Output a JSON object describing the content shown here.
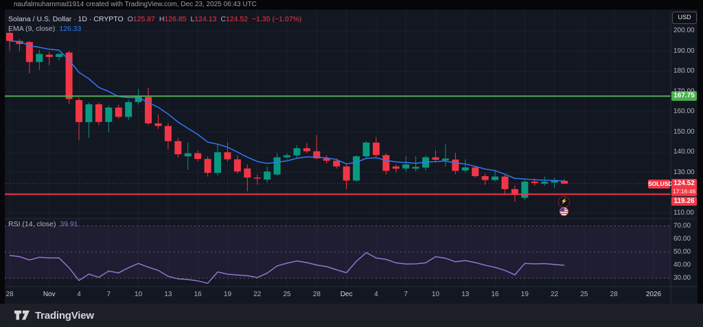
{
  "header": {
    "attribution": "naufalmuhammad1914 created with TradingView.com, Dec 23, 2025 06:43 UTC"
  },
  "legend": {
    "title": "Solana / U.S. Dollar · 1D · CRYPTO",
    "o_label": "O",
    "o_val": "125.87",
    "h_label": "H",
    "h_val": "126.85",
    "l_label": "L",
    "l_val": "124.13",
    "c_label": "C",
    "c_val": "124.52",
    "change": "−1.35 (−1.07%)",
    "ema_label": "EMA (9, close)",
    "ema_val": "126.33",
    "rsi_label": "RSI (14, close)",
    "rsi_val": "39.91"
  },
  "axis": {
    "currency_button": "USD",
    "price_ticks": [
      200,
      190,
      180,
      170,
      160,
      150,
      140,
      130,
      110
    ],
    "rsi_ticks": [
      70,
      60,
      50,
      40,
      30
    ],
    "time_ticks": [
      {
        "label": "28",
        "day": 0
      },
      {
        "label": "Nov",
        "day": 4,
        "major": true
      },
      {
        "label": "4",
        "day": 7
      },
      {
        "label": "7",
        "day": 10
      },
      {
        "label": "10",
        "day": 13
      },
      {
        "label": "13",
        "day": 16
      },
      {
        "label": "16",
        "day": 19
      },
      {
        "label": "19",
        "day": 22
      },
      {
        "label": "22",
        "day": 25
      },
      {
        "label": "25",
        "day": 28
      },
      {
        "label": "28",
        "day": 31
      },
      {
        "label": "Dec",
        "day": 34,
        "major": true
      },
      {
        "label": "4",
        "day": 37
      },
      {
        "label": "7",
        "day": 40
      },
      {
        "label": "10",
        "day": 43
      },
      {
        "label": "13",
        "day": 46
      },
      {
        "label": "16",
        "day": 49
      },
      {
        "label": "19",
        "day": 52
      },
      {
        "label": "22",
        "day": 55
      },
      {
        "label": "25",
        "day": 58
      },
      {
        "label": "28",
        "day": 61
      },
      {
        "label": "2026",
        "day": 65,
        "major": true
      }
    ]
  },
  "labels": {
    "green_level": "167.75",
    "symbol_tag": "SOLUSD",
    "last_price": "124.52",
    "countdown": "17:16:46",
    "red_level": "119.26"
  },
  "icons": {
    "flash": "⚡"
  },
  "footer": {
    "brand": "TradingView"
  },
  "colors": {
    "panel": "#131722",
    "grid": "rgba(182,186,196,0.06)",
    "up": "#089981",
    "down": "#f23645",
    "ema": "#3179f5",
    "rsi": "#9575cd",
    "rsi_band": "rgba(126,87,194,0.10)",
    "rsi_dash": "rgba(178,181,190,0.45)",
    "level_green": "#4caf50",
    "level_red": "#f23645",
    "border": "#2a2e39"
  },
  "chart_data": {
    "type": "candlestick",
    "symbol": "SOLUSD",
    "interval": "1D",
    "start_date": "2025-10-28",
    "last_ohlc": {
      "open": 125.87,
      "high": 126.85,
      "low": 124.13,
      "close": 124.52,
      "change": -1.35,
      "change_pct": -1.07
    },
    "levels": {
      "resistance": 167.75,
      "support": 119.26,
      "last_price": 124.52
    },
    "price_axis": {
      "min": 107,
      "max": 202,
      "tick_step": 10
    },
    "rsi_axis": {
      "bands": [
        70,
        50,
        30
      ],
      "min": 25,
      "max": 75
    },
    "ema_period": 9,
    "rsi_period": 14,
    "candles": [
      [
        199.0,
        200.5,
        190.4,
        195.0
      ],
      [
        195.0,
        196.0,
        190.0,
        193.5
      ],
      [
        194.5,
        195.0,
        179.0,
        184.6
      ],
      [
        184.6,
        190.6,
        180.7,
        188.6
      ],
      [
        188.2,
        189.5,
        183.0,
        187.1
      ],
      [
        187.1,
        189.0,
        185.5,
        188.6
      ],
      [
        189.3,
        190.2,
        163.9,
        166.3
      ],
      [
        165.8,
        167.0,
        145.9,
        154.9
      ],
      [
        154.9,
        164.5,
        147.0,
        163.7
      ],
      [
        163.7,
        164.5,
        153.5,
        155.0
      ],
      [
        155.0,
        163.0,
        149.8,
        162.1
      ],
      [
        162.1,
        163.5,
        156.5,
        157.5
      ],
      [
        157.5,
        166.0,
        156.0,
        164.8
      ],
      [
        164.8,
        171.3,
        163.5,
        167.6
      ],
      [
        167.3,
        171.9,
        153.5,
        154.3
      ],
      [
        154.3,
        158.8,
        151.5,
        153.0
      ],
      [
        153.0,
        154.5,
        141.4,
        145.5
      ],
      [
        145.5,
        147.0,
        137.5,
        139.0
      ],
      [
        138.0,
        144.8,
        131.3,
        139.5
      ],
      [
        139.5,
        141.0,
        135.5,
        136.7
      ],
      [
        136.7,
        138.0,
        128.0,
        129.8
      ],
      [
        129.8,
        144.0,
        128.5,
        140.0
      ],
      [
        140.0,
        144.8,
        135.5,
        136.5
      ],
      [
        136.5,
        138.5,
        129.5,
        130.5
      ],
      [
        132.0,
        134.0,
        120.7,
        127.5
      ],
      [
        127.5,
        129.0,
        124.0,
        127.0
      ],
      [
        126.5,
        133.0,
        125.0,
        130.5
      ],
      [
        129.0,
        139.5,
        128.5,
        137.5
      ],
      [
        137.5,
        139.5,
        136.5,
        138.5
      ],
      [
        138.5,
        143.5,
        137.0,
        142.0
      ],
      [
        142.0,
        144.5,
        139.5,
        140.5
      ],
      [
        140.5,
        148.5,
        136.5,
        137.0
      ],
      [
        137.0,
        138.5,
        134.5,
        135.8
      ],
      [
        135.8,
        137.0,
        132.0,
        133.0
      ],
      [
        133.0,
        134.0,
        121.8,
        126.0
      ],
      [
        126.0,
        138.5,
        125.5,
        138.0
      ],
      [
        138.0,
        145.5,
        137.0,
        144.8
      ],
      [
        144.8,
        147.6,
        137.5,
        138.6
      ],
      [
        138.6,
        139.5,
        129.1,
        130.8
      ],
      [
        133.0,
        134.0,
        130.0,
        131.9
      ],
      [
        132.0,
        138.0,
        130.5,
        134.0
      ],
      [
        131.9,
        138.0,
        130.5,
        132.8
      ],
      [
        132.4,
        138.5,
        131.0,
        137.5
      ],
      [
        137.5,
        141.0,
        135.5,
        136.3
      ],
      [
        136.0,
        144.0,
        133.0,
        136.9
      ],
      [
        136.4,
        139.7,
        129.1,
        130.8
      ],
      [
        131.0,
        136.4,
        130.0,
        132.5
      ],
      [
        132.5,
        133.5,
        127.5,
        128.2
      ],
      [
        128.2,
        129.5,
        124.0,
        126.3
      ],
      [
        126.3,
        131.3,
        125.5,
        128.0
      ],
      [
        128.0,
        129.0,
        119.6,
        121.8
      ],
      [
        121.8,
        123.5,
        115.6,
        119.0
      ],
      [
        117.5,
        126.5,
        116.5,
        125.5
      ],
      [
        125.5,
        127.0,
        123.5,
        124.8
      ],
      [
        124.5,
        128.0,
        123.5,
        125.4
      ],
      [
        125.0,
        127.4,
        122.4,
        125.8
      ],
      [
        125.87,
        126.85,
        124.13,
        124.52
      ]
    ],
    "rsi_values": [
      47.5,
      46.5,
      44.0,
      46.0,
      45.5,
      45.5,
      38.0,
      28.3,
      33.2,
      30.7,
      35.5,
      34.1,
      38.0,
      41.3,
      38.5,
      36.0,
      31.5,
      29.6,
      29.0,
      28.0,
      26.2,
      34.8,
      33.1,
      32.5,
      32.0,
      30.5,
      34.0,
      39.4,
      41.5,
      43.2,
      42.0,
      40.1,
      38.9,
      36.5,
      34.2,
      43.0,
      49.6,
      45.5,
      44.4,
      41.8,
      40.9,
      41.0,
      41.8,
      46.5,
      45.3,
      42.6,
      43.5,
      42.0,
      40.0,
      38.3,
      36.0,
      32.6,
      41.3,
      41.0,
      41.2,
      40.5,
      39.91
    ]
  }
}
